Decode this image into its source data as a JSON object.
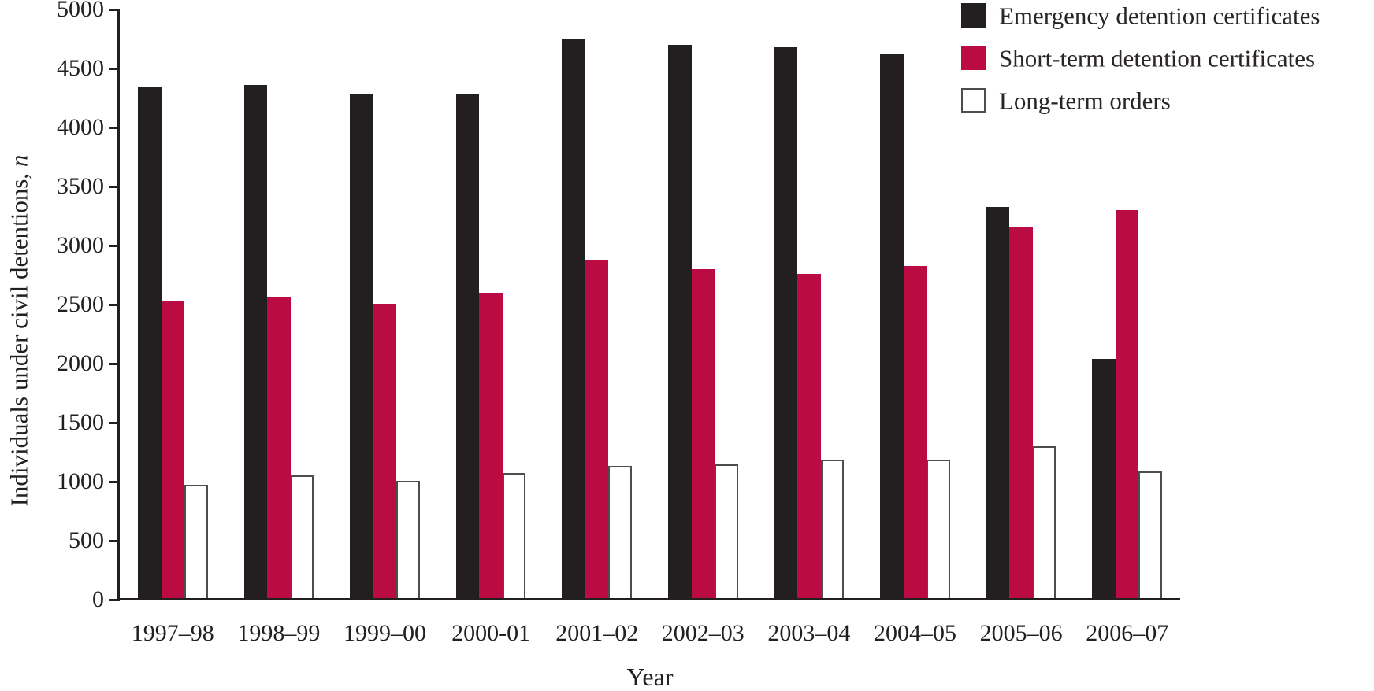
{
  "chart_data": {
    "type": "bar",
    "title": "",
    "xlabel": "Year",
    "ylabel": "Individuals under civil detentions, n",
    "ylabel_main": "Individuals under civil detentions,",
    "ylabel_italic_suffix": "n",
    "ylim": [
      0,
      5000
    ],
    "ytick_step": 500,
    "yticks": [
      0,
      500,
      1000,
      1500,
      2000,
      2500,
      3000,
      3500,
      4000,
      4500,
      5000
    ],
    "grid": false,
    "legend_position": "top-right",
    "categories": [
      "1997–98",
      "1998–99",
      "1999–00",
      "2000-01",
      "2001–02",
      "2002–03",
      "2003–04",
      "2004–05",
      "2005–06",
      "2006–07"
    ],
    "series": [
      {
        "name": "Emergency detention certificates",
        "color": "#231F20",
        "border": "none",
        "values": [
          4340,
          4360,
          4280,
          4290,
          4750,
          4700,
          4680,
          4620,
          3330,
          2040
        ]
      },
      {
        "name": "Short-term detention certificates",
        "color": "#BB0B43",
        "border": "none",
        "values": [
          2530,
          2570,
          2510,
          2600,
          2880,
          2800,
          2760,
          2830,
          3160,
          3300
        ]
      },
      {
        "name": "Long-term orders",
        "color": "#FFFFFF",
        "border": "#4D4D4D",
        "values": [
          975,
          1055,
          1010,
          1075,
          1135,
          1150,
          1190,
          1185,
          1300,
          1090
        ]
      }
    ]
  },
  "colors": {
    "axis": "#231F20",
    "text": "#231F20",
    "background": "#FFFFFF",
    "accent_red": "#BB0B43"
  }
}
